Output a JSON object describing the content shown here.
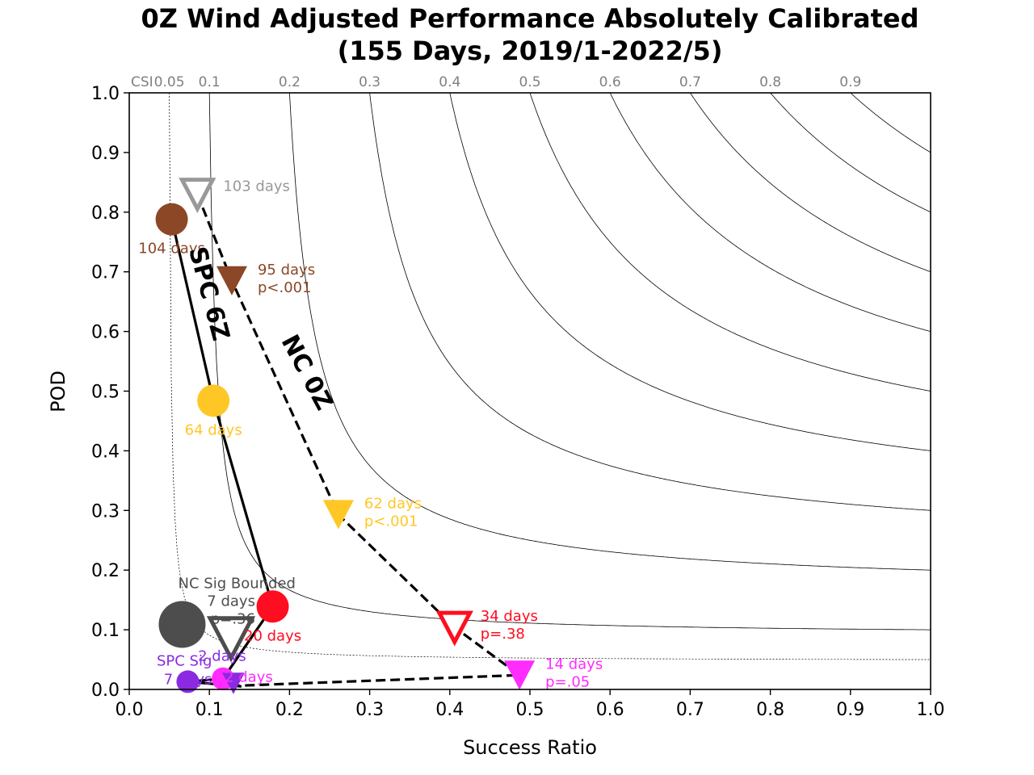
{
  "chart_data": {
    "type": "scatter",
    "title": [
      "0Z Wind Adjusted Performance Absolutely Calibrated",
      "(155 Days, 2019/1-2022/5)"
    ],
    "xlabel": "Success Ratio",
    "ylabel": "POD",
    "xlim": [
      0,
      1
    ],
    "ylim": [
      0,
      1
    ],
    "xticks": [
      "0.0",
      "0.1",
      "0.2",
      "0.3",
      "0.4",
      "0.5",
      "0.6",
      "0.7",
      "0.8",
      "0.9",
      "1.0"
    ],
    "yticks": [
      "0.0",
      "0.1",
      "0.2",
      "0.3",
      "0.4",
      "0.5",
      "0.6",
      "0.7",
      "0.8",
      "0.9",
      "1.0"
    ],
    "csi_prefix": "CSI",
    "csi_labels": [
      "0.05",
      "0.1",
      "0.2",
      "0.3",
      "0.4",
      "0.5",
      "0.6",
      "0.7",
      "0.8",
      "0.9"
    ],
    "csi_values": [
      0.05,
      0.1,
      0.2,
      0.3,
      0.4,
      0.5,
      0.6,
      0.7,
      0.8,
      0.9
    ],
    "series": [
      {
        "name": "SPC 6Z",
        "marker": "circle",
        "line": "solid",
        "points": [
          {
            "x": 0.053,
            "y": 0.788,
            "color": "#8b4726",
            "filled": true,
            "labels": [
              "104 days"
            ],
            "label_pos": "below"
          },
          {
            "x": 0.105,
            "y": 0.484,
            "color": "#ffc726",
            "filled": true,
            "labels": [
              "64 days"
            ],
            "label_pos": "below"
          },
          {
            "x": 0.179,
            "y": 0.139,
            "color": "#ff0d20",
            "filled": true,
            "labels": [
              "20 days"
            ],
            "label_pos": "below"
          },
          {
            "x": 0.117,
            "y": 0.018,
            "color": "#ff2bff",
            "filled": true,
            "labels": [
              "2 days"
            ],
            "label_pos": "right"
          },
          {
            "x": 0.073,
            "y": 0.013,
            "color": "#8a2be2",
            "filled": true,
            "labels": [
              "SPC Sig",
              "7 days"
            ],
            "label_pos": "left"
          },
          {
            "x": 0.066,
            "y": 0.109,
            "color": "#4d4d4d",
            "filled": true,
            "labels": [],
            "label_pos": "none"
          }
        ]
      },
      {
        "name": "NC 0Z",
        "marker": "triangle-down",
        "line": "dashed",
        "points": [
          {
            "x": 0.085,
            "y": 0.83,
            "color": "#999999",
            "filled": false,
            "labels": [
              "103 days"
            ],
            "label_pos": "right"
          },
          {
            "x": 0.128,
            "y": 0.685,
            "color": "#8b4726",
            "filled": true,
            "labels": [
              "95 days",
              "p<.001"
            ],
            "label_pos": "right"
          },
          {
            "x": 0.261,
            "y": 0.293,
            "color": "#ffc726",
            "filled": true,
            "labels": [
              "62 days",
              "p<.001"
            ],
            "label_pos": "right"
          },
          {
            "x": 0.406,
            "y": 0.104,
            "color": "#ff0d20",
            "filled": false,
            "labels": [
              "34 days",
              "p=.38"
            ],
            "label_pos": "right"
          },
          {
            "x": 0.487,
            "y": 0.024,
            "color": "#ff2bff",
            "filled": true,
            "labels": [
              "14 days",
              "p=.05"
            ],
            "label_pos": "right"
          },
          {
            "x": 0.13,
            "y": 0.01,
            "color": "#8a2be2",
            "filled": true,
            "labels": [
              "2 days"
            ],
            "label_pos": "above"
          },
          {
            "x": 0.127,
            "y": 0.086,
            "color": "#4d4d4d",
            "filled": false,
            "labels": [
              "NC Sig Bounded",
              "7 days",
              "p=.36"
            ],
            "label_pos": "above-left"
          }
        ]
      }
    ]
  }
}
